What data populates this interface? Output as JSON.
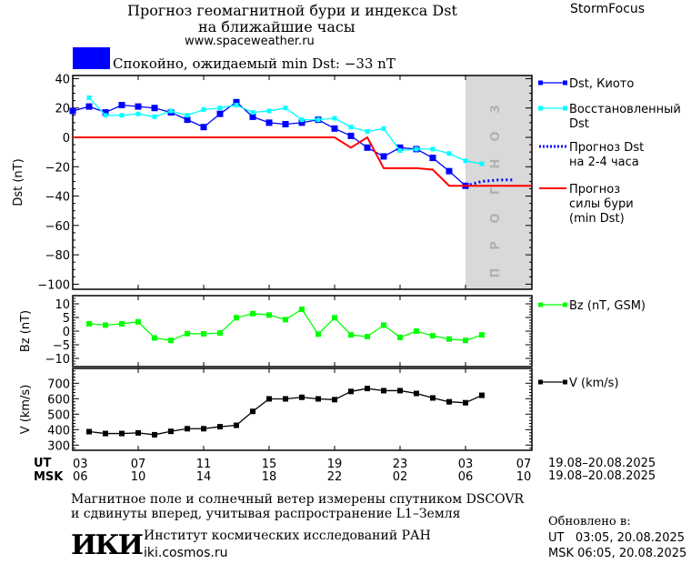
{
  "header": {
    "title_line1": "Прогноз геомагнитной бури и индекса Dst",
    "title_line2": "на ближайшие часы",
    "url": "www.spaceweather.ru",
    "brand": "StormFocus"
  },
  "status": {
    "color": "#0000ff",
    "text": "Спокойно, ожидаемый min Dst: −33 nT"
  },
  "forecast_band_label": "ПРОГНОЗ",
  "legend": {
    "kyoto": "Dst, Киото",
    "restored_1": "Восстановленный",
    "restored_2": "Dst",
    "forecast_1": "Прогноз Dst",
    "forecast_2": "на 2-4 часа",
    "storm_1": "Прогноз",
    "storm_2": "силы бури",
    "storm_3": "(min Dst)",
    "bz": "Bz (nT, GSM)",
    "v": "V (km/s)"
  },
  "time_axis": {
    "ut_label": "UT",
    "msk_label": "MSK",
    "ut_ticks": [
      "03",
      "07",
      "11",
      "15",
      "19",
      "23",
      "03",
      "07"
    ],
    "msk_ticks": [
      "06",
      "10",
      "14",
      "18",
      "22",
      "02",
      "06",
      "10"
    ],
    "ut_range": "19.08–20.08.2025",
    "msk_range": "19.08–20.08.2025"
  },
  "footer": {
    "note1": "Магнитное поле и солнечный ветер измерены спутником DSCOVR",
    "note2": "и сдвинуты вперед, учитывая распространение L1–Земля",
    "institute": "Институт космических исследований РАН",
    "site": "iki.cosmos.ru",
    "logo": "ИКИ",
    "updated_label": "Обновлено в:",
    "updated_ut": "UT   03:05, 20.08.2025",
    "updated_msk": "MSK 06:05, 20.08.2025"
  },
  "chart_data": [
    {
      "type": "line",
      "ylabel": "Dst (nT)",
      "ylim": [
        -100,
        40
      ],
      "yticks": [
        40,
        20,
        0,
        -20,
        -40,
        -60,
        -80,
        -100
      ],
      "x_unit": "hours from 03 UT 19.08",
      "series": [
        {
          "name": "Dst, Киото",
          "color": "#0000ff",
          "start": 0,
          "values": [
            18,
            21,
            17,
            22,
            21,
            20,
            17,
            12,
            7,
            16,
            24,
            14,
            10,
            9,
            10,
            12,
            6,
            1,
            -7,
            -13,
            -7,
            -8,
            -14,
            -23,
            -33
          ]
        },
        {
          "name": "Восстановленный Dst",
          "color": "#00ffff",
          "start": 1,
          "values": [
            27,
            15,
            15,
            16,
            14,
            18,
            15,
            19,
            20,
            22,
            17,
            18,
            20,
            12,
            12,
            13,
            7,
            4,
            6,
            -9,
            -8,
            -8,
            -11,
            -16,
            -18
          ]
        },
        {
          "name": "Прогноз Dst на 2-4 часа",
          "color": "#0000ff",
          "dotted": true,
          "start": 24,
          "values": [
            -33,
            -30,
            -29,
            -29
          ]
        },
        {
          "name": "Прогноз силы бури (min Dst)",
          "color": "#ff0000",
          "start": 0,
          "values": [
            0,
            0,
            0,
            0,
            0,
            0,
            0,
            0,
            0,
            0,
            0,
            0,
            0,
            0,
            0,
            0,
            0,
            -7,
            0,
            -21,
            -21,
            -21,
            -22,
            -33,
            -33,
            -33,
            -33,
            -33,
            -33
          ]
        }
      ]
    },
    {
      "type": "line",
      "ylabel": "Bz (nT)",
      "ylim": [
        -13,
        13
      ],
      "yticks": [
        10,
        5,
        0,
        -5,
        -10
      ],
      "series": [
        {
          "name": "Bz (nT, GSM)",
          "color": "#00ff00",
          "start": 1,
          "values": [
            2.7,
            2.2,
            2.7,
            3.4,
            -2.5,
            -3.4,
            -0.9,
            -1,
            -0.7,
            4.9,
            6.4,
            5.9,
            4.2,
            8,
            -1.1,
            4.9,
            -1.4,
            -2,
            2.2,
            -2.3,
            0,
            -1.7,
            -2.9,
            -3.4,
            -1.4
          ]
        }
      ]
    },
    {
      "type": "line",
      "ylabel": "V (km/s)",
      "ylim": [
        260,
        780
      ],
      "yticks": [
        700,
        600,
        500,
        400,
        300
      ],
      "series": [
        {
          "name": "V (km/s)",
          "color": "#000000",
          "start": 1,
          "values": [
            387,
            375,
            375,
            379,
            367,
            389,
            406,
            406,
            419,
            428,
            518,
            599,
            599,
            609,
            599,
            594,
            647,
            666,
            652,
            652,
            634,
            605,
            580,
            574,
            622
          ]
        }
      ]
    }
  ]
}
